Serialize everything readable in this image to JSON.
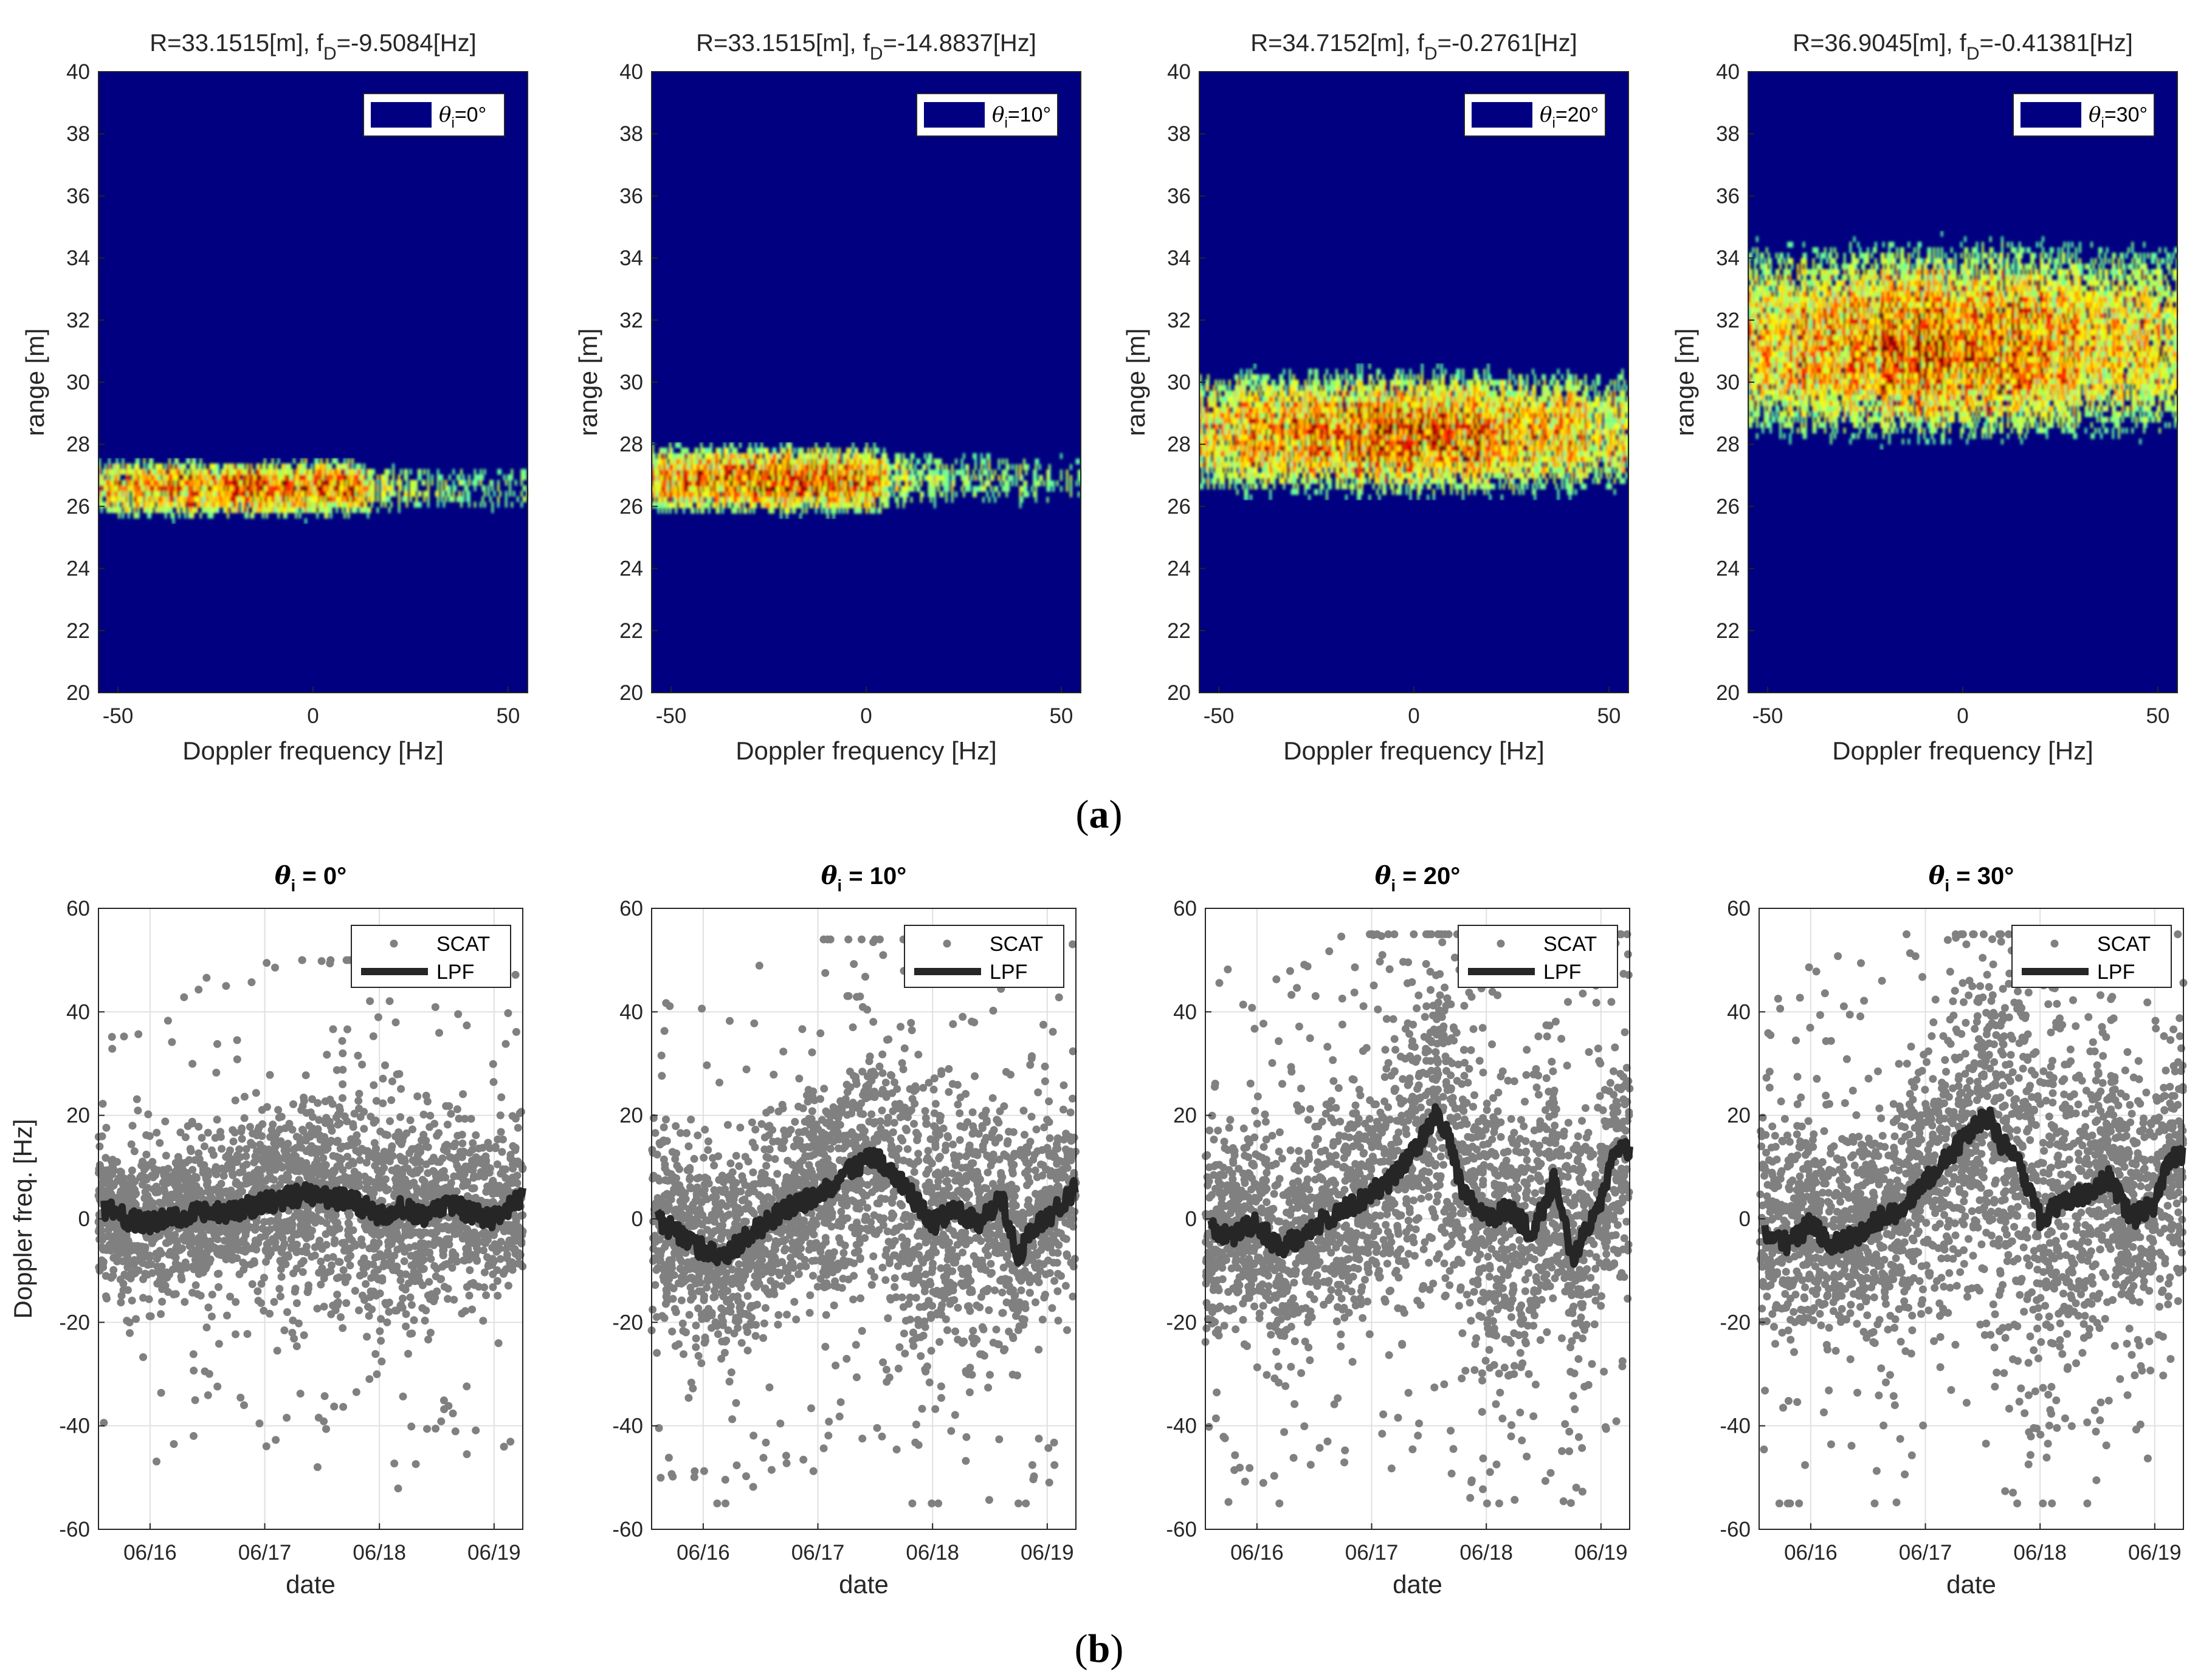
{
  "figure": {
    "caption_a_letter": "a",
    "caption_b_letter": "b",
    "colors": {
      "background": "#000080",
      "scatter": "#808080",
      "lpf": "#262626"
    }
  },
  "chart_data": [
    {
      "type": "heatmap",
      "panel": "a1",
      "title": "R=33.1515[m], f_D=-9.5084[Hz]",
      "title_main": "R=33.1515[m], f",
      "title_sub": "D",
      "title_rest": "=-9.5084[Hz]",
      "xlabel": "Doppler frequency [Hz]",
      "ylabel": "range [m]",
      "xlim": [
        -55,
        55
      ],
      "ylim": [
        20,
        40
      ],
      "xticks": [
        "-50",
        "0",
        "50"
      ],
      "yticks": [
        "20",
        "22",
        "24",
        "26",
        "28",
        "30",
        "32",
        "34",
        "36",
        "38",
        "40"
      ],
      "legend": {
        "theta": "θ",
        "sub": "i",
        "value": "=0°",
        "placement": "top-right"
      },
      "band": {
        "center_range": 26.5,
        "half_width": 1.1,
        "peak_range": 26.5,
        "peak_doppler": -12,
        "core_doppler_span": [
          -50,
          15
        ],
        "tail_doppler_span": [
          15,
          55
        ]
      }
    },
    {
      "type": "heatmap",
      "panel": "a2",
      "title": "R=33.1515[m], f_D=-14.8837[Hz]",
      "title_main": "R=33.1515[m], f",
      "title_sub": "D",
      "title_rest": "=-14.8837[Hz]",
      "xlabel": "Doppler frequency [Hz]",
      "ylabel": "range [m]",
      "xlim": [
        -55,
        55
      ],
      "ylim": [
        20,
        40
      ],
      "xticks": [
        "-50",
        "0",
        "50"
      ],
      "yticks": [
        "20",
        "22",
        "24",
        "26",
        "28",
        "30",
        "32",
        "34",
        "36",
        "38",
        "40"
      ],
      "legend": {
        "theta": "θ",
        "sub": "i",
        "value": "=10°",
        "placement": "top-right"
      },
      "band": {
        "center_range": 26.8,
        "half_width": 1.3,
        "peak_range": 26.7,
        "peak_doppler": -15,
        "core_doppler_span": [
          -55,
          5
        ],
        "tail_doppler_span": [
          5,
          55
        ]
      }
    },
    {
      "type": "heatmap",
      "panel": "a3",
      "title": "R=34.7152[m], f_D=-0.2761[Hz]",
      "title_main": "R=34.7152[m], f",
      "title_sub": "D",
      "title_rest": "=-0.2761[Hz]",
      "xlabel": "Doppler frequency [Hz]",
      "ylabel": "range [m]",
      "xlim": [
        -55,
        55
      ],
      "ylim": [
        20,
        40
      ],
      "xticks": [
        "-50",
        "0",
        "50"
      ],
      "yticks": [
        "20",
        "22",
        "24",
        "26",
        "28",
        "30",
        "32",
        "34",
        "36",
        "38",
        "40"
      ],
      "legend": {
        "theta": "θ",
        "sub": "i",
        "value": "=20°",
        "placement": "top-right"
      },
      "band": {
        "center_range": 28.3,
        "half_width": 2.3,
        "peak_range": 28.2,
        "peak_doppler": -5,
        "core_doppler_span": [
          -55,
          55
        ],
        "tail_doppler_span": [
          55,
          55
        ]
      }
    },
    {
      "type": "heatmap",
      "panel": "a4",
      "title": "R=36.9045[m], f_D=-0.41381[Hz]",
      "title_main": "R=36.9045[m], f",
      "title_sub": "D",
      "title_rest": "=-0.41381[Hz]",
      "xlabel": "Doppler frequency [Hz]",
      "ylabel": "range [m]",
      "xlim": [
        -55,
        55
      ],
      "ylim": [
        20,
        40
      ],
      "xticks": [
        "-50",
        "0",
        "50"
      ],
      "yticks": [
        "20",
        "22",
        "24",
        "26",
        "28",
        "30",
        "32",
        "34",
        "36",
        "38",
        "40"
      ],
      "legend": {
        "theta": "θ",
        "sub": "i",
        "value": "=30°",
        "placement": "top-right"
      },
      "band": {
        "center_range": 31.3,
        "half_width": 3.6,
        "peak_range": 30.6,
        "peak_doppler": -5,
        "core_doppler_span": [
          -55,
          55
        ],
        "tail_doppler_span": [
          55,
          55
        ]
      }
    },
    {
      "type": "scatter",
      "panel": "b1",
      "title_theta": "θ",
      "title_sub": "i",
      "title_rest": " = 0°",
      "xlabel": "date",
      "ylabel": "Doppler freq. [Hz]",
      "xlim": [
        15.55,
        19.25
      ],
      "ylim": [
        -60,
        60
      ],
      "xticks": [
        "06/16",
        "06/17",
        "06/18",
        "06/19"
      ],
      "xtick_values": [
        16,
        17,
        18,
        19
      ],
      "yticks": [
        "-60",
        "-40",
        "-20",
        "0",
        "20",
        "40",
        "60"
      ],
      "grid": true,
      "legend": {
        "placement": "top-right",
        "entries": [
          "SCAT",
          "LPF"
        ]
      },
      "series": [
        {
          "name": "SCAT",
          "kind": "scatter",
          "spread": 13,
          "outlier_max": 50,
          "outlier_min": -54
        },
        {
          "name": "LPF",
          "kind": "line",
          "x": [
            15.6,
            15.8,
            16.0,
            16.2,
            16.4,
            16.6,
            16.8,
            17.0,
            17.2,
            17.4,
            17.6,
            17.8,
            18.0,
            18.2,
            18.4,
            18.6,
            18.8,
            19.0,
            19.25
          ],
          "y": [
            2,
            0,
            -1,
            0,
            1,
            1,
            2,
            3,
            4,
            5,
            4,
            3,
            1,
            2,
            0,
            3,
            1,
            0,
            4
          ]
        }
      ]
    },
    {
      "type": "scatter",
      "panel": "b2",
      "title_theta": "θ",
      "title_sub": "i",
      "title_rest": " = 10°",
      "xlabel": "date",
      "ylabel": "",
      "xlim": [
        15.55,
        19.25
      ],
      "ylim": [
        -60,
        60
      ],
      "xticks": [
        "06/16",
        "06/17",
        "06/18",
        "06/19"
      ],
      "xtick_values": [
        16,
        17,
        18,
        19
      ],
      "yticks": [
        "-60",
        "-40",
        "-20",
        "0",
        "20",
        "40",
        "60"
      ],
      "grid": true,
      "legend": {
        "placement": "top-right",
        "entries": [
          "SCAT",
          "LPF"
        ]
      },
      "series": [
        {
          "name": "SCAT",
          "kind": "scatter",
          "spread": 16,
          "outlier_max": 54,
          "outlier_min": -55
        },
        {
          "name": "LPF",
          "kind": "line",
          "x": [
            15.6,
            15.8,
            16.0,
            16.2,
            16.4,
            16.6,
            16.8,
            17.0,
            17.2,
            17.4,
            17.5,
            17.6,
            17.8,
            18.0,
            18.2,
            18.4,
            18.6,
            18.75,
            18.85,
            19.0,
            19.25
          ],
          "y": [
            0,
            -3,
            -6,
            -7,
            -3,
            0,
            3,
            4,
            8,
            11,
            12,
            10,
            5,
            -1,
            2,
            -1,
            4,
            -8,
            -2,
            0,
            6
          ]
        }
      ]
    },
    {
      "type": "scatter",
      "panel": "b3",
      "title_theta": "θ",
      "title_sub": "i",
      "title_rest": " = 20°",
      "xlabel": "date",
      "ylabel": "",
      "xlim": [
        15.55,
        19.25
      ],
      "ylim": [
        -60,
        60
      ],
      "xticks": [
        "06/16",
        "06/17",
        "06/18",
        "06/19"
      ],
      "xtick_values": [
        16,
        17,
        18,
        19
      ],
      "yticks": [
        "-60",
        "-40",
        "-20",
        "0",
        "20",
        "40",
        "60"
      ],
      "grid": true,
      "legend": {
        "placement": "top-right",
        "entries": [
          "SCAT",
          "LPF"
        ]
      },
      "series": [
        {
          "name": "SCAT",
          "kind": "scatter",
          "spread": 18,
          "outlier_max": 55,
          "outlier_min": -55
        },
        {
          "name": "LPF",
          "kind": "line",
          "x": [
            15.6,
            15.8,
            16.0,
            16.2,
            16.4,
            16.6,
            16.8,
            17.0,
            17.2,
            17.4,
            17.55,
            17.65,
            17.8,
            18.0,
            18.2,
            18.4,
            18.6,
            18.75,
            18.85,
            19.0,
            19.1,
            19.25
          ],
          "y": [
            -2,
            -3,
            -1,
            -6,
            -3,
            0,
            2,
            5,
            8,
            14,
            20,
            17,
            5,
            0,
            2,
            -3,
            8,
            -8,
            -3,
            3,
            12,
            14
          ]
        }
      ]
    },
    {
      "type": "scatter",
      "panel": "b4",
      "title_theta": "θ",
      "title_sub": "i",
      "title_rest": " = 30°",
      "xlabel": "date",
      "ylabel": "",
      "xlim": [
        15.55,
        19.25
      ],
      "ylim": [
        -60,
        60
      ],
      "xticks": [
        "06/16",
        "06/17",
        "06/18",
        "06/19"
      ],
      "xtick_values": [
        16,
        17,
        18,
        19
      ],
      "yticks": [
        "-60",
        "-40",
        "-20",
        "0",
        "20",
        "40",
        "60"
      ],
      "grid": true,
      "legend": {
        "placement": "top-right",
        "entries": [
          "SCAT",
          "LPF"
        ]
      },
      "series": [
        {
          "name": "SCAT",
          "kind": "scatter",
          "spread": 20,
          "outlier_max": 55,
          "outlier_min": -55
        },
        {
          "name": "LPF",
          "kind": "line",
          "x": [
            15.6,
            15.8,
            16.0,
            16.2,
            16.4,
            16.6,
            16.8,
            17.0,
            17.2,
            17.4,
            17.55,
            17.65,
            17.8,
            18.0,
            18.2,
            18.4,
            18.6,
            18.8,
            19.0,
            19.1,
            19.25
          ],
          "y": [
            -3,
            -5,
            -1,
            -5,
            -3,
            0,
            2,
            7,
            12,
            17,
            20,
            15,
            12,
            0,
            3,
            5,
            8,
            0,
            3,
            10,
            13
          ]
        }
      ]
    }
  ]
}
